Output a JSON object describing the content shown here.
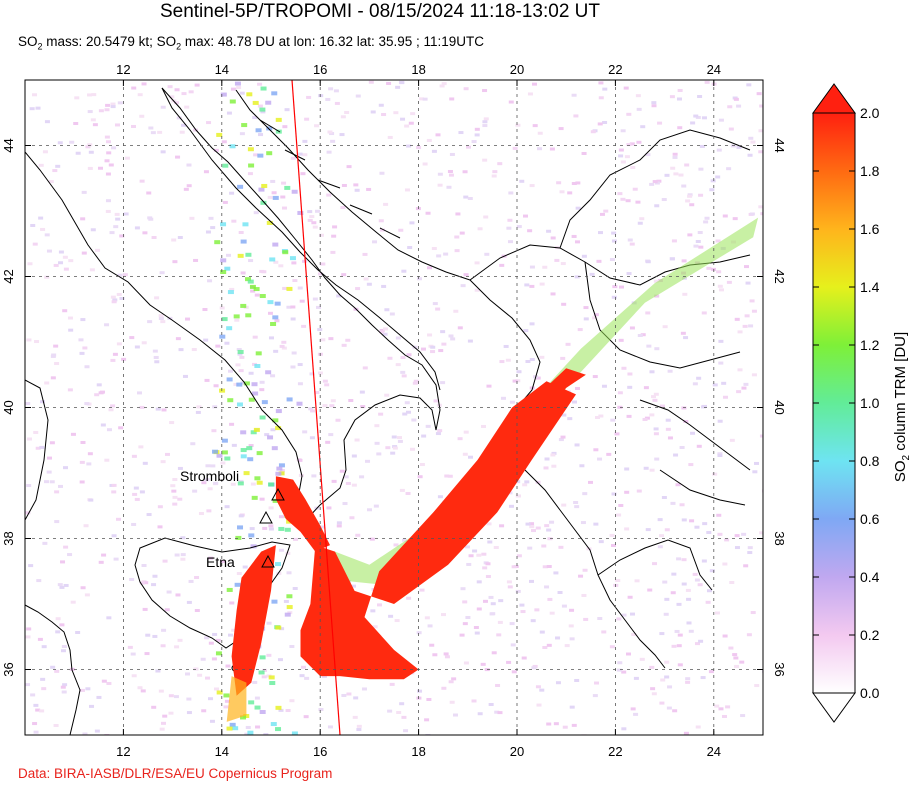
{
  "header": {
    "title": "Sentinel-5P/TROPOMI - 08/15/2024 11:18-13:02 UT",
    "subtitle_prefix": "SO",
    "subtitle_sub1": "2",
    "subtitle_mid": " mass: 20.5479 kt; SO",
    "subtitle_sub2": "2",
    "subtitle_rest": " max: 48.78 DU at lon: 16.32 lat: 35.95 ; 11:19UTC"
  },
  "map": {
    "lon_ticks": [
      "12",
      "14",
      "16",
      "18",
      "20",
      "22",
      "24"
    ],
    "lat_ticks": [
      "36",
      "38",
      "40",
      "42",
      "44"
    ],
    "lon_range": [
      10.0,
      25.0
    ],
    "lat_range": [
      35.0,
      45.0
    ],
    "volcano_labels": {
      "stromboli": "Stromboli",
      "etna": "Etna"
    },
    "plume_color": "#ff2a0f",
    "swath_edge_color": "#ff0000"
  },
  "colorbar": {
    "title_prefix": "SO",
    "title_sub": "2",
    "title_rest": " column TRM [DU]",
    "ticks": [
      "0.0",
      "0.2",
      "0.4",
      "0.6",
      "0.8",
      "1.0",
      "1.2",
      "1.4",
      "1.6",
      "1.8",
      "2.0"
    ],
    "colors": [
      "#ffffff",
      "#f3c9f0",
      "#c0a8f0",
      "#7fa8f4",
      "#6ee4f2",
      "#62ec98",
      "#7ef038",
      "#e6f01c",
      "#ffb41c",
      "#ff6a12",
      "#ff2010"
    ]
  },
  "footer": {
    "credit": "Data: BIRA-IASB/DLR/ESA/EU Copernicus Program"
  }
}
